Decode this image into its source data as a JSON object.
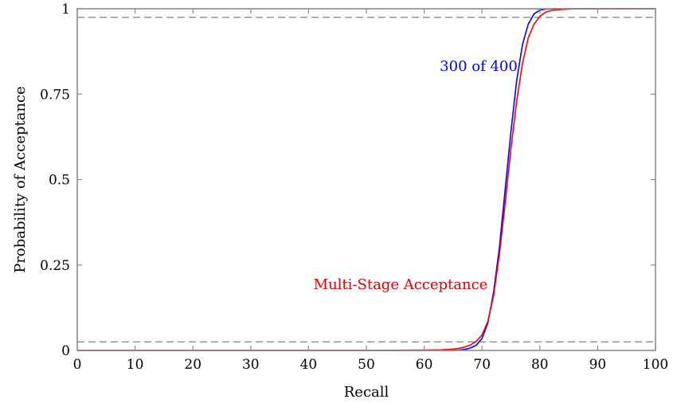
{
  "chart_data": {
    "type": "line",
    "title": "",
    "xlabel": "Recall",
    "ylabel": "Probability of Acceptance",
    "xlim": [
      0,
      100
    ],
    "ylim": [
      0,
      1
    ],
    "x_ticks": [
      0,
      10,
      20,
      30,
      40,
      50,
      60,
      70,
      80,
      90,
      100
    ],
    "x_tick_labels": [
      "0",
      "10",
      "20",
      "30",
      "40",
      "50",
      "60",
      "70",
      "80",
      "90",
      "100"
    ],
    "y_ticks": [
      0,
      0.25,
      0.5,
      0.75,
      1
    ],
    "y_tick_labels": [
      "0",
      "0.25",
      "0.5",
      "0.75",
      "1"
    ],
    "grid": false,
    "reference_lines": [
      {
        "orientation": "horizontal",
        "y": 0.025,
        "style": "dashed",
        "color": "#808080"
      },
      {
        "orientation": "horizontal",
        "y": 0.975,
        "style": "dashed",
        "color": "#808080"
      }
    ],
    "series": [
      {
        "name": "300 of 400",
        "color": "#0000ff",
        "label_color": "#0000ff",
        "x": [
          0,
          10,
          20,
          30,
          40,
          50,
          60,
          65,
          66,
          67,
          68,
          69,
          70,
          71,
          72,
          73,
          74,
          75,
          76,
          77,
          78,
          79,
          80,
          81,
          82,
          83,
          84,
          85,
          90,
          100
        ],
        "y": [
          0,
          0,
          0,
          0,
          0,
          0,
          0,
          0,
          0.001,
          0.003,
          0.007,
          0.015,
          0.035,
          0.08,
          0.17,
          0.3,
          0.47,
          0.64,
          0.79,
          0.895,
          0.955,
          0.985,
          0.996,
          0.999,
          1,
          1,
          1,
          1,
          1,
          1
        ]
      },
      {
        "name": "Multi-Stage Acceptance",
        "color": "#ff0000",
        "label_color": "#e00000",
        "x": [
          0,
          10,
          20,
          30,
          40,
          50,
          60,
          63,
          65,
          66,
          67,
          68,
          69,
          70,
          71,
          72,
          73,
          74,
          75,
          76,
          77,
          78,
          79,
          80,
          81,
          82,
          83,
          84,
          85,
          86,
          88,
          90,
          100
        ],
        "y": [
          0,
          0,
          0,
          0,
          0,
          0,
          0.001,
          0.002,
          0.004,
          0.006,
          0.01,
          0.016,
          0.027,
          0.045,
          0.085,
          0.16,
          0.28,
          0.43,
          0.59,
          0.73,
          0.84,
          0.915,
          0.955,
          0.978,
          0.99,
          0.995,
          0.997,
          0.998,
          0.999,
          1,
          1,
          1,
          1
        ]
      }
    ]
  }
}
